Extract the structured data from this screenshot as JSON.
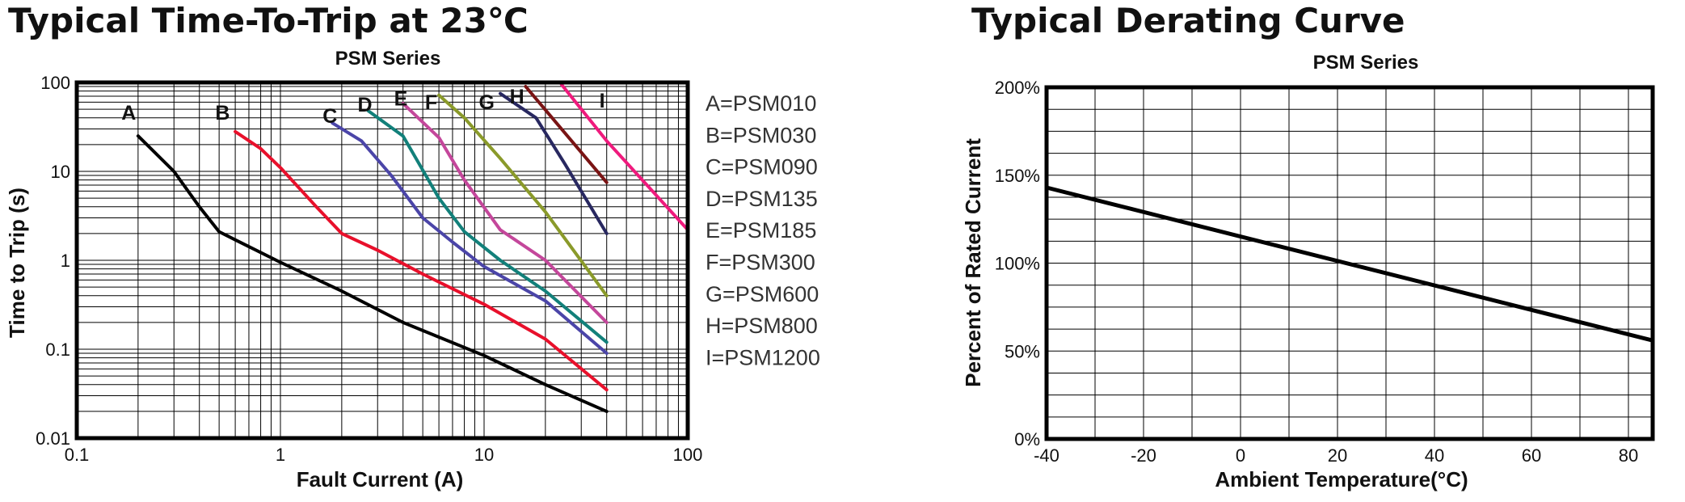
{
  "chart_data": [
    {
      "type": "line",
      "title": "Typical Time-To-Trip at 23℃",
      "subtitle": "PSM Series",
      "xlabel": "Fault Current (A)",
      "ylabel": "Time to Trip (s)",
      "xscale": "log",
      "yscale": "log",
      "xlim": [
        0.1,
        100
      ],
      "ylim": [
        0.01,
        100
      ],
      "xticks": [
        "0.1",
        "1",
        "10",
        "100"
      ],
      "yticks": [
        "0.01",
        "0.1",
        "1",
        "10",
        "100"
      ],
      "grid": true,
      "legend_position": "right",
      "legend": [
        "A=PSM010",
        "B=PSM030",
        "C=PSM090",
        "D=PSM135",
        "E=PSM185",
        "F=PSM300",
        "G=PSM600",
        "H=PSM800",
        "I=PSM1200"
      ],
      "series": [
        {
          "name": "A",
          "color": "#000000",
          "label_at": [
            0.18,
            38
          ],
          "points": [
            [
              0.2,
              25
            ],
            [
              0.3,
              10
            ],
            [
              0.4,
              4
            ],
            [
              0.5,
              2.1
            ],
            [
              0.6,
              1.7
            ],
            [
              1,
              0.95
            ],
            [
              2,
              0.45
            ],
            [
              4,
              0.2
            ],
            [
              10,
              0.085
            ],
            [
              20,
              0.04
            ],
            [
              40,
              0.02
            ]
          ]
        },
        {
          "name": "B",
          "color": "#e8102b",
          "label_at": [
            0.52,
            38
          ],
          "points": [
            [
              0.6,
              28
            ],
            [
              0.8,
              18
            ],
            [
              1,
              11
            ],
            [
              1.5,
              4
            ],
            [
              2,
              2
            ],
            [
              3,
              1.3
            ],
            [
              5,
              0.7
            ],
            [
              10,
              0.32
            ],
            [
              20,
              0.13
            ],
            [
              40,
              0.035
            ]
          ]
        },
        {
          "name": "C",
          "color": "#4b45a8",
          "label_at": [
            1.75,
            35
          ],
          "points": [
            [
              1.8,
              35
            ],
            [
              2.5,
              22
            ],
            [
              3.5,
              9
            ],
            [
              5,
              3
            ],
            [
              7,
              1.6
            ],
            [
              10,
              0.85
            ],
            [
              20,
              0.35
            ],
            [
              40,
              0.09
            ]
          ]
        },
        {
          "name": "D",
          "color": "#12807a",
          "label_at": [
            2.6,
            47
          ],
          "points": [
            [
              2.7,
              48
            ],
            [
              4,
              25
            ],
            [
              6,
              5
            ],
            [
              8,
              2.1
            ],
            [
              12,
              1
            ],
            [
              20,
              0.45
            ],
            [
              40,
              0.12
            ]
          ]
        },
        {
          "name": "E",
          "color": "#c4479b",
          "label_at": [
            3.9,
            55
          ],
          "points": [
            [
              4,
              58
            ],
            [
              6,
              24
            ],
            [
              8,
              8
            ],
            [
              12,
              2.2
            ],
            [
              20,
              1
            ],
            [
              40,
              0.2
            ]
          ]
        },
        {
          "name": "F",
          "color": "#8a9a2a",
          "label_at": [
            5.5,
            50
          ],
          "points": [
            [
              6,
              72
            ],
            [
              8,
              40
            ],
            [
              12,
              14
            ],
            [
              20,
              3.5
            ],
            [
              40,
              0.4
            ]
          ]
        },
        {
          "name": "G",
          "color": "#282860",
          "label_at": [
            10.3,
            50
          ],
          "points": [
            [
              12,
              75
            ],
            [
              18,
              40
            ],
            [
              25,
              12
            ],
            [
              40,
              2
            ]
          ]
        },
        {
          "name": "H",
          "color": "#7a1414",
          "label_at": [
            14.5,
            58
          ],
          "points": [
            [
              16,
              90
            ],
            [
              40,
              7.5
            ]
          ]
        },
        {
          "name": "I",
          "color": "#ef1a7d",
          "label_at": [
            38,
            52
          ],
          "points": [
            [
              24,
              95
            ],
            [
              40,
              22
            ],
            [
              100,
              2.2
            ]
          ]
        }
      ]
    },
    {
      "type": "line",
      "title": "Typical Derating Curve",
      "subtitle": "PSM Series",
      "xlabel": "Ambient Temperature(°C)",
      "ylabel": "Percent of Rated Current",
      "xlim": [
        -40,
        85
      ],
      "ylim": [
        0,
        200
      ],
      "xticks": [
        "-40",
        "-20",
        "0",
        "20",
        "40",
        "60",
        "80"
      ],
      "yticks": [
        "0%",
        "50%",
        "100%",
        "150%",
        "200%"
      ],
      "grid": true,
      "series": [
        {
          "color": "#000000",
          "points": [
            [
              -40,
              143
            ],
            [
              85,
              56
            ]
          ]
        }
      ]
    }
  ]
}
